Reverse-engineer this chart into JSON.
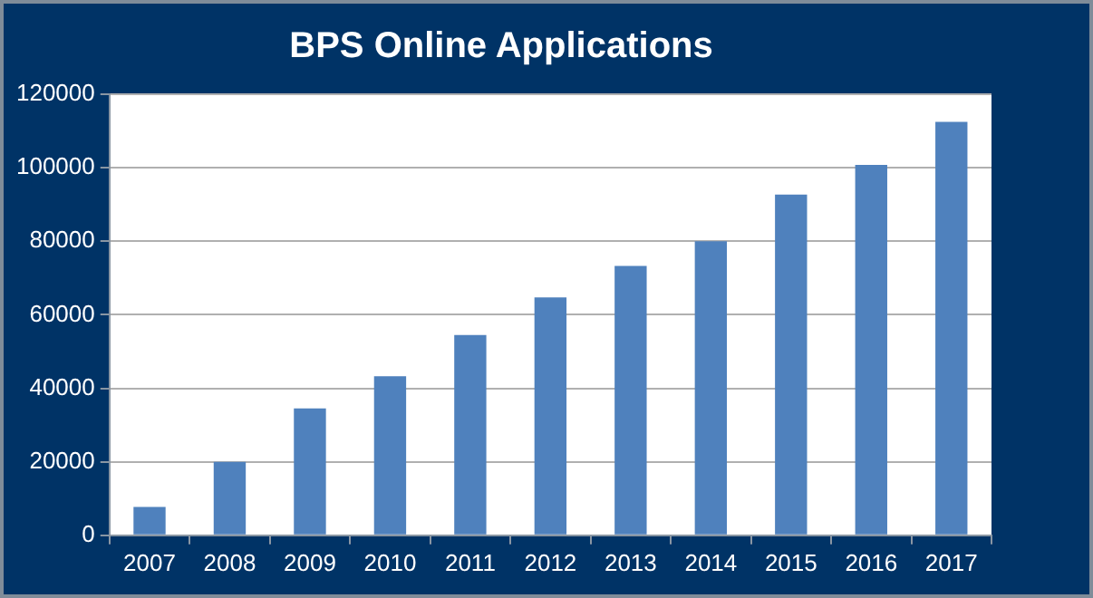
{
  "chart_data": {
    "type": "bar",
    "title": "BPS Online Applications",
    "categories": [
      "2007",
      "2008",
      "2009",
      "2010",
      "2011",
      "2012",
      "2013",
      "2014",
      "2015",
      "2016",
      "2017"
    ],
    "values": [
      7700,
      20000,
      34500,
      43300,
      54500,
      64700,
      73300,
      80000,
      92700,
      100800,
      112500
    ],
    "color": "#4f81bd",
    "ylim": [
      0,
      120000
    ],
    "yticks": [
      0,
      20000,
      40000,
      60000,
      80000,
      100000,
      120000
    ],
    "grid": "y"
  }
}
